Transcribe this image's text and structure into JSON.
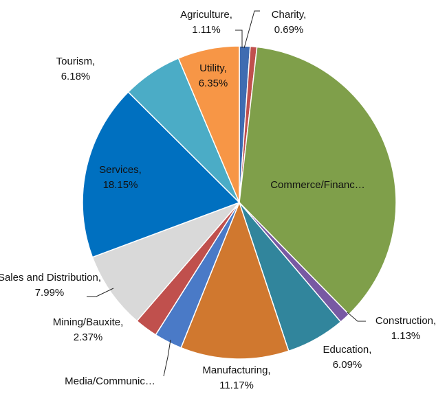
{
  "chart_data": {
    "type": "pie",
    "categories": [
      "Agriculture,",
      "Charity,",
      "Commerce/Financ…",
      "Construction,",
      "Education,",
      "Manufacturing,",
      "Media/Communic…",
      "Mining/Bauxite,",
      "Sales and Distribution,",
      "Services,",
      "Tourism,",
      "Utility,"
    ],
    "values": [
      1.11,
      0.69,
      35.88,
      1.13,
      6.09,
      11.17,
      2.89,
      2.37,
      7.99,
      18.15,
      6.18,
      6.35
    ],
    "value_labels": [
      "1.11%",
      "0.69%",
      null,
      "1.13%",
      "6.09%",
      "11.17%",
      null,
      "2.37%",
      "7.99%",
      "18.15%",
      "6.18%",
      "6.35%"
    ],
    "colors": [
      "#3f6cb1",
      "#c0504d",
      "#7f9f4a",
      "#7859a3",
      "#31859c",
      "#d0782f",
      "#4a7ac7",
      "#c0504d",
      "#d9d9d9",
      "#0070c0",
      "#4bacc6",
      "#f79646"
    ]
  }
}
